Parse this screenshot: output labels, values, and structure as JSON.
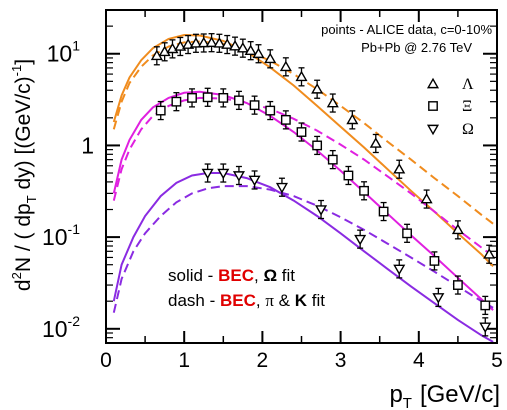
{
  "chart_data": {
    "type": "scatter",
    "title": "",
    "xlabel": "p",
    "xlabel_sub": "T",
    "xlabel_unit": "[GeV/c]",
    "ylabel": {
      "p1": "d",
      "sup1": "2",
      "p2": "N / ( dp",
      "sub1": "T",
      "p3": " dy)  [(GeV/c)",
      "sup2": "-1",
      "p4": "]"
    },
    "xlim": [
      0,
      5
    ],
    "ylim": [
      0.007,
      30
    ],
    "yscale": "log",
    "grid": false,
    "x_ticks": [
      {
        "v": 0,
        "label": "0"
      },
      {
        "v": 1,
        "label": "1"
      },
      {
        "v": 2,
        "label": "2"
      },
      {
        "v": 3,
        "label": "3"
      },
      {
        "v": 4,
        "label": "4"
      },
      {
        "v": 5,
        "label": "5"
      }
    ],
    "y_ticks": [
      {
        "v": 10,
        "base": "10",
        "exp": "1"
      },
      {
        "v": 1,
        "base": "1",
        "exp": ""
      },
      {
        "v": 0.1,
        "base": "10",
        "exp": "-1"
      },
      {
        "v": 0.01,
        "base": "10",
        "exp": "-2"
      }
    ],
    "header": {
      "line1": "points - ALICE data, c=0-10%",
      "line2": "Pb+Pb @ 2.76 TeV"
    },
    "legend_position": "top-right",
    "legend": [
      {
        "marker": "triangle-up",
        "label": "Λ"
      },
      {
        "marker": "square",
        "label": "Ξ"
      },
      {
        "marker": "triangle-down",
        "label": "Ω"
      }
    ],
    "annotations": {
      "solid": {
        "prefix": "solid - ",
        "bec": "BEC",
        "comma": ", ",
        "fit": "Ω",
        "suffix": " fit"
      },
      "dash": {
        "prefix": "dash - ",
        "bec": "BEC",
        "comma": ", ",
        "fit1": "π",
        "amp": " & ",
        "fit2": "K",
        "suffix": " fit"
      }
    },
    "colors": {
      "lambda": "#f08c1e",
      "xi": "#e020e0",
      "omega": "#8a2be2",
      "bec": "#e00000"
    },
    "series": [
      {
        "id": "lambda",
        "marker": "triangle-up",
        "points": [
          {
            "x": 0.65,
            "y": 9.5
          },
          {
            "x": 0.75,
            "y": 10.5
          },
          {
            "x": 0.85,
            "y": 11.3
          },
          {
            "x": 0.95,
            "y": 12.0
          },
          {
            "x": 1.05,
            "y": 12.6
          },
          {
            "x": 1.15,
            "y": 13.0
          },
          {
            "x": 1.25,
            "y": 13.1
          },
          {
            "x": 1.35,
            "y": 13.2
          },
          {
            "x": 1.45,
            "y": 13.0
          },
          {
            "x": 1.55,
            "y": 12.6
          },
          {
            "x": 1.65,
            "y": 12.1
          },
          {
            "x": 1.75,
            "y": 11.5
          },
          {
            "x": 1.85,
            "y": 10.8
          },
          {
            "x": 1.95,
            "y": 10.0
          },
          {
            "x": 2.1,
            "y": 8.8
          },
          {
            "x": 2.3,
            "y": 7.2
          },
          {
            "x": 2.5,
            "y": 5.6
          },
          {
            "x": 2.7,
            "y": 4.1
          },
          {
            "x": 2.9,
            "y": 2.9
          },
          {
            "x": 3.15,
            "y": 1.9
          },
          {
            "x": 3.45,
            "y": 1.05
          },
          {
            "x": 3.75,
            "y": 0.55
          },
          {
            "x": 4.1,
            "y": 0.26
          },
          {
            "x": 4.5,
            "y": 0.12
          },
          {
            "x": 4.9,
            "y": 0.065
          }
        ]
      },
      {
        "id": "xi",
        "marker": "square",
        "points": [
          {
            "x": 0.7,
            "y": 2.4
          },
          {
            "x": 0.9,
            "y": 3.0
          },
          {
            "x": 1.1,
            "y": 3.3
          },
          {
            "x": 1.3,
            "y": 3.35
          },
          {
            "x": 1.5,
            "y": 3.3
          },
          {
            "x": 1.7,
            "y": 3.1
          },
          {
            "x": 1.9,
            "y": 2.75
          },
          {
            "x": 2.1,
            "y": 2.4
          },
          {
            "x": 2.3,
            "y": 1.9
          },
          {
            "x": 2.5,
            "y": 1.4
          },
          {
            "x": 2.7,
            "y": 1.0
          },
          {
            "x": 2.9,
            "y": 0.7
          },
          {
            "x": 3.1,
            "y": 0.47
          },
          {
            "x": 3.3,
            "y": 0.32
          },
          {
            "x": 3.55,
            "y": 0.19
          },
          {
            "x": 3.85,
            "y": 0.11
          },
          {
            "x": 4.2,
            "y": 0.055
          },
          {
            "x": 4.5,
            "y": 0.03
          },
          {
            "x": 4.85,
            "y": 0.018
          }
        ]
      },
      {
        "id": "omega",
        "marker": "triangle-down",
        "points": [
          {
            "x": 1.3,
            "y": 0.5
          },
          {
            "x": 1.5,
            "y": 0.5
          },
          {
            "x": 1.7,
            "y": 0.47
          },
          {
            "x": 1.9,
            "y": 0.42
          },
          {
            "x": 2.25,
            "y": 0.35
          },
          {
            "x": 2.75,
            "y": 0.2
          },
          {
            "x": 3.25,
            "y": 0.095
          },
          {
            "x": 3.75,
            "y": 0.045
          },
          {
            "x": 4.25,
            "y": 0.022
          },
          {
            "x": 4.85,
            "y": 0.0105
          }
        ]
      }
    ],
    "curves": [
      {
        "id": "lambda-solid",
        "color": "lambda",
        "dash": false,
        "points": [
          [
            0.1,
            1.8
          ],
          [
            0.2,
            3.5
          ],
          [
            0.3,
            5.5
          ],
          [
            0.45,
            8.5
          ],
          [
            0.6,
            11.5
          ],
          [
            0.8,
            14.5
          ],
          [
            1.0,
            16.0
          ],
          [
            1.2,
            15.8
          ],
          [
            1.5,
            13.8
          ],
          [
            1.8,
            10.5
          ],
          [
            2.1,
            7.1
          ],
          [
            2.4,
            4.5
          ],
          [
            2.7,
            2.7
          ],
          [
            3.0,
            1.6
          ],
          [
            3.3,
            0.95
          ],
          [
            3.6,
            0.55
          ],
          [
            3.9,
            0.32
          ],
          [
            4.2,
            0.19
          ],
          [
            4.5,
            0.11
          ],
          [
            4.8,
            0.065
          ],
          [
            4.95,
            0.048
          ]
        ]
      },
      {
        "id": "lambda-dash",
        "color": "lambda",
        "dash": true,
        "points": [
          [
            0.1,
            1.5
          ],
          [
            0.2,
            3.0
          ],
          [
            0.3,
            4.8
          ],
          [
            0.45,
            7.2
          ],
          [
            0.6,
            9.6
          ],
          [
            0.8,
            12.0
          ],
          [
            1.0,
            13.3
          ],
          [
            1.2,
            13.6
          ],
          [
            1.5,
            12.8
          ],
          [
            1.8,
            10.8
          ],
          [
            2.1,
            8.4
          ],
          [
            2.4,
            6.0
          ],
          [
            2.7,
            4.1
          ],
          [
            3.0,
            2.7
          ],
          [
            3.3,
            1.75
          ],
          [
            3.6,
            1.1
          ],
          [
            3.9,
            0.7
          ],
          [
            4.2,
            0.44
          ],
          [
            4.5,
            0.28
          ],
          [
            4.8,
            0.175
          ],
          [
            4.95,
            0.14
          ]
        ]
      },
      {
        "id": "xi-solid",
        "color": "xi",
        "dash": false,
        "points": [
          [
            0.1,
            0.3
          ],
          [
            0.2,
            0.7
          ],
          [
            0.3,
            1.15
          ],
          [
            0.45,
            1.9
          ],
          [
            0.6,
            2.6
          ],
          [
            0.8,
            3.3
          ],
          [
            1.0,
            3.75
          ],
          [
            1.2,
            3.85
          ],
          [
            1.5,
            3.55
          ],
          [
            1.8,
            2.9
          ],
          [
            2.1,
            2.1
          ],
          [
            2.4,
            1.4
          ],
          [
            2.7,
            0.88
          ],
          [
            3.0,
            0.53
          ],
          [
            3.3,
            0.31
          ],
          [
            3.6,
            0.18
          ],
          [
            3.9,
            0.105
          ],
          [
            4.2,
            0.062
          ],
          [
            4.5,
            0.036
          ],
          [
            4.8,
            0.021
          ],
          [
            4.95,
            0.016
          ]
        ]
      },
      {
        "id": "xi-dash",
        "color": "xi",
        "dash": true,
        "points": [
          [
            0.1,
            0.25
          ],
          [
            0.2,
            0.55
          ],
          [
            0.3,
            0.9
          ],
          [
            0.45,
            1.5
          ],
          [
            0.6,
            2.1
          ],
          [
            0.8,
            2.7
          ],
          [
            1.0,
            3.1
          ],
          [
            1.2,
            3.3
          ],
          [
            1.5,
            3.25
          ],
          [
            1.8,
            2.95
          ],
          [
            2.1,
            2.5
          ],
          [
            2.4,
            1.95
          ],
          [
            2.7,
            1.45
          ],
          [
            3.0,
            1.02
          ],
          [
            3.3,
            0.7
          ],
          [
            3.6,
            0.46
          ],
          [
            3.9,
            0.3
          ],
          [
            4.2,
            0.19
          ],
          [
            4.5,
            0.12
          ],
          [
            4.8,
            0.077
          ],
          [
            4.95,
            0.062
          ]
        ]
      },
      {
        "id": "omega-solid",
        "color": "omega",
        "dash": false,
        "points": [
          [
            0.1,
            0.02
          ],
          [
            0.2,
            0.05
          ],
          [
            0.35,
            0.1
          ],
          [
            0.5,
            0.17
          ],
          [
            0.7,
            0.28
          ],
          [
            0.9,
            0.39
          ],
          [
            1.1,
            0.47
          ],
          [
            1.3,
            0.5
          ],
          [
            1.5,
            0.5
          ],
          [
            1.8,
            0.44
          ],
          [
            2.1,
            0.35
          ],
          [
            2.4,
            0.25
          ],
          [
            2.7,
            0.17
          ],
          [
            3.0,
            0.11
          ],
          [
            3.3,
            0.07
          ],
          [
            3.6,
            0.045
          ],
          [
            3.9,
            0.029
          ],
          [
            4.2,
            0.019
          ],
          [
            4.5,
            0.0125
          ],
          [
            4.8,
            0.0085
          ],
          [
            4.95,
            0.0072
          ]
        ]
      },
      {
        "id": "omega-dash",
        "color": "omega",
        "dash": true,
        "points": [
          [
            0.1,
            0.015
          ],
          [
            0.2,
            0.035
          ],
          [
            0.35,
            0.07
          ],
          [
            0.5,
            0.11
          ],
          [
            0.7,
            0.17
          ],
          [
            0.9,
            0.24
          ],
          [
            1.1,
            0.3
          ],
          [
            1.3,
            0.34
          ],
          [
            1.5,
            0.36
          ],
          [
            1.8,
            0.36
          ],
          [
            2.1,
            0.33
          ],
          [
            2.4,
            0.28
          ],
          [
            2.7,
            0.22
          ],
          [
            3.0,
            0.165
          ],
          [
            3.3,
            0.12
          ],
          [
            3.6,
            0.085
          ],
          [
            3.9,
            0.06
          ],
          [
            4.2,
            0.042
          ],
          [
            4.5,
            0.029
          ],
          [
            4.8,
            0.02
          ],
          [
            4.95,
            0.017
          ]
        ]
      }
    ]
  }
}
